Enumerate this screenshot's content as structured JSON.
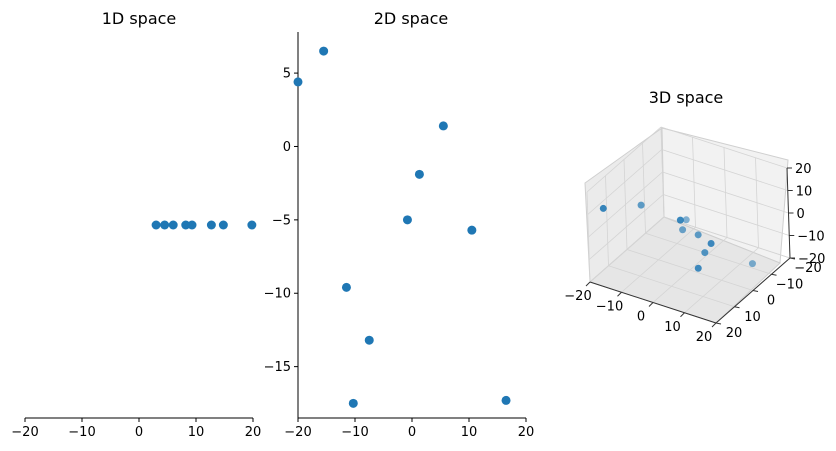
{
  "chart_data": [
    {
      "type": "scatter",
      "title": "1D space",
      "xlim": [
        -20,
        20
      ],
      "xticks": [
        -20,
        -10,
        0,
        10,
        20
      ],
      "x": [
        3.0,
        4.5,
        6.0,
        8.2,
        9.3,
        12.7,
        14.8,
        19.8
      ],
      "color": "#1f77b4"
    },
    {
      "type": "scatter",
      "title": "2D space",
      "xlim": [
        -20,
        20
      ],
      "ylim": [
        -18.5,
        7.8
      ],
      "xticks": [
        -20,
        -10,
        0,
        10,
        20
      ],
      "yticks": [
        5,
        0,
        -5,
        -10,
        -15
      ],
      "points": [
        [
          -20.0,
          4.4
        ],
        [
          -15.5,
          6.5
        ],
        [
          5.5,
          1.4
        ],
        [
          1.3,
          -1.9
        ],
        [
          -0.8,
          -5.0
        ],
        [
          10.5,
          -5.7
        ],
        [
          -11.5,
          -9.6
        ],
        [
          -7.5,
          -13.2
        ],
        [
          -10.3,
          -17.5
        ],
        [
          16.5,
          -17.3
        ]
      ],
      "color": "#1f77b4"
    },
    {
      "type": "scatter",
      "title": "3D space",
      "xlim": [
        -20,
        20
      ],
      "ylim": [
        -20,
        20
      ],
      "zlim": [
        -20,
        20
      ],
      "xticks": [
        -20,
        -10,
        0,
        10,
        20
      ],
      "yticks": [
        -20,
        -10,
        0,
        10,
        20
      ],
      "zticks": [
        -20,
        -10,
        0,
        10,
        20
      ],
      "grid": true,
      "points": [
        [
          -18,
          15,
          10
        ],
        [
          -15,
          0,
          2
        ],
        [
          6,
          14,
          15
        ],
        [
          15,
          13,
          8
        ],
        [
          -8,
          -12,
          -10
        ],
        [
          -5,
          -5,
          -8
        ],
        [
          3,
          0,
          -3
        ],
        [
          8,
          5,
          -5
        ],
        [
          10,
          12,
          -6
        ],
        [
          14,
          -10,
          -18
        ]
      ],
      "color": "#1f77b4"
    }
  ]
}
